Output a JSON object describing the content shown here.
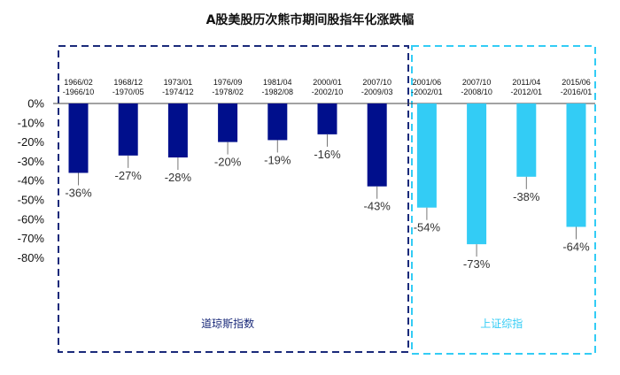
{
  "chart_data": {
    "type": "bar",
    "title": "A股美股历次熊市期间股指年化涨跌幅",
    "xlabel": "",
    "ylabel": "",
    "ylim": [
      -80,
      0
    ],
    "yticks": [
      "0%",
      "-10%",
      "-20%",
      "-30%",
      "-40%",
      "-50%",
      "-60%",
      "-70%",
      "-80%"
    ],
    "categories": [
      [
        "1966/02",
        "-1966/10"
      ],
      [
        "1968/12",
        "-1970/05"
      ],
      [
        "1973/01",
        "-1974/12"
      ],
      [
        "1976/09",
        "-1978/02"
      ],
      [
        "1981/04",
        "-1982/08"
      ],
      [
        "2000/01",
        "-2002/10"
      ],
      [
        "2007/10",
        "-2009/03"
      ],
      [
        "2001/06",
        "-2002/01"
      ],
      [
        "2007/10",
        "-2008/10"
      ],
      [
        "2011/04",
        "-2012/01"
      ],
      [
        "2015/06",
        "-2016/01"
      ]
    ],
    "values": [
      -36,
      -27,
      -28,
      -20,
      -19,
      -16,
      -43,
      -54,
      -73,
      -38,
      -64
    ],
    "value_labels": [
      "-36%",
      "-27%",
      "-28%",
      "-20%",
      "-19%",
      "-16%",
      "-43%",
      "-54%",
      "-73%",
      "-38%",
      "-64%"
    ],
    "groups": [
      {
        "name": "道琼斯指数",
        "start": 0,
        "end": 6,
        "color": "#000f8c",
        "border": "#1a2a7a",
        "border_style": "dashed"
      },
      {
        "name": "上证综指",
        "start": 7,
        "end": 10,
        "color": "#33ccf5",
        "border": "#33ccf5",
        "border_style": "dashed"
      }
    ],
    "grid": false
  }
}
